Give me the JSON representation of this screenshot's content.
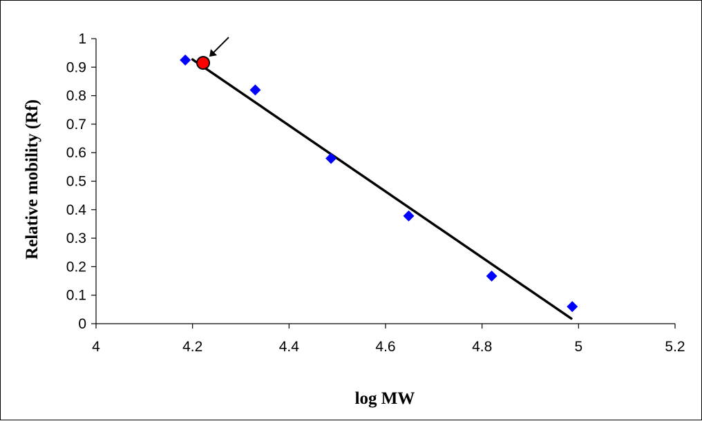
{
  "chart_data": {
    "type": "scatter",
    "title": "",
    "xlabel": "log MW",
    "ylabel": "Relative mobility (Rf)",
    "xlim": [
      4,
      5.2
    ],
    "ylim": [
      0,
      1
    ],
    "x_ticks": [
      "4",
      "4.2",
      "4.4",
      "4.6",
      "4.8",
      "5",
      "5.2"
    ],
    "y_ticks": [
      "0",
      "0.1",
      "0.2",
      "0.3",
      "0.4",
      "0.5",
      "0.6",
      "0.7",
      "0.8",
      "0.9",
      "1"
    ],
    "grid": false,
    "legend": "none",
    "series": [
      {
        "marker": "diamond",
        "color": "#0000ff",
        "points": [
          {
            "x": 4.185,
            "y": 0.925
          },
          {
            "x": 4.33,
            "y": 0.82
          },
          {
            "x": 4.487,
            "y": 0.58
          },
          {
            "x": 4.648,
            "y": 0.378
          },
          {
            "x": 4.82,
            "y": 0.167
          },
          {
            "x": 4.987,
            "y": 0.06
          }
        ]
      },
      {
        "marker": "circle",
        "color": "#ff0000",
        "points": [
          {
            "x": 4.222,
            "y": 0.915
          }
        ]
      }
    ],
    "trendline": {
      "type": "linear",
      "color": "#000000",
      "from": {
        "x": 4.2,
        "y": 0.927
      },
      "to": {
        "x": 4.985,
        "y": 0.018
      }
    },
    "annotations": [
      {
        "type": "arrow",
        "points_to": {
          "x": 4.222,
          "y": 0.915
        }
      }
    ]
  }
}
